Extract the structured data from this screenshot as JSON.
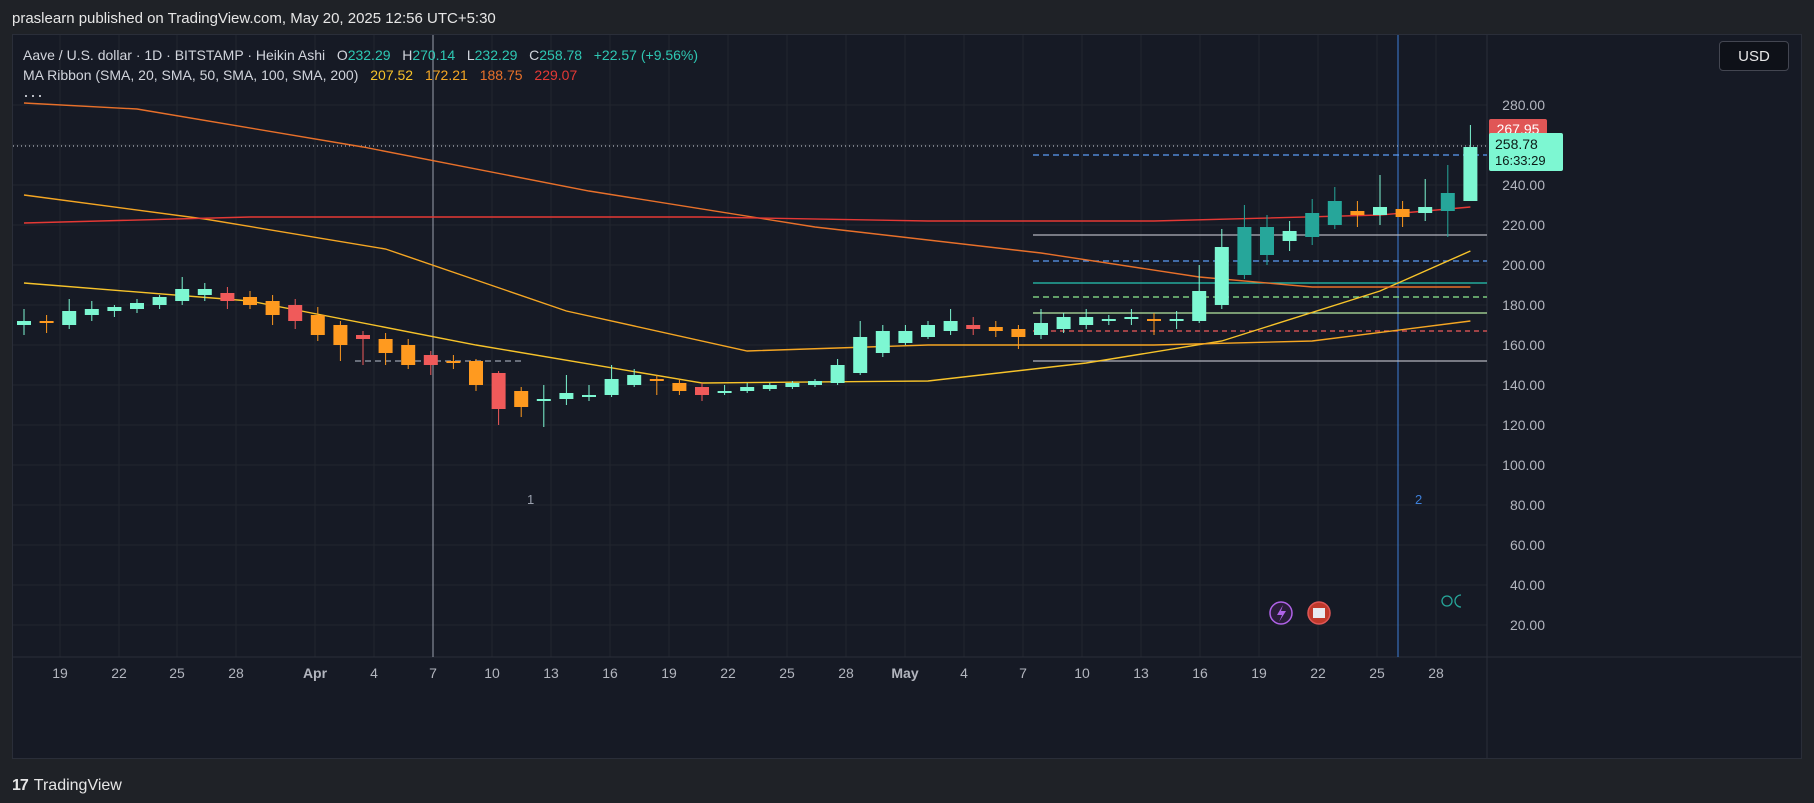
{
  "header": {
    "publish_text": "praslearn published on TradingView.com, May 20, 2025 12:56 UTC+5:30"
  },
  "legend": {
    "symbol": "Aave / U.S. dollar · 1D · BITSTAMP · Heikin Ashi",
    "o_label": "O",
    "o_value": "232.29",
    "h_label": "H",
    "h_value": "270.14",
    "l_label": "L",
    "l_value": "232.29",
    "c_label": "C",
    "c_value": "258.78",
    "change": "+22.57 (+9.56%)",
    "ma_label": "MA Ribbon (SMA, 20, SMA, 50, SMA, 100, SMA, 200)",
    "ma_values": [
      "207.52",
      "172.21",
      "188.75",
      "229.07"
    ],
    "more": "···"
  },
  "currency_button": "USD",
  "footer": {
    "logo": "17",
    "brand": "TradingView"
  },
  "colors": {
    "up": "#7df7d2",
    "up_dark": "#26a69a",
    "down": "#f05a5a",
    "down_orange": "#ff9a1f",
    "ma20": "#f7c32a",
    "ma50": "#f5a623",
    "ma100": "#e8702a",
    "ma200": "#e53935"
  },
  "chart_data": {
    "type": "candlestick",
    "y_ticks": [
      "280.00",
      "260.00",
      "240.00",
      "220.00",
      "200.00",
      "180.00",
      "160.00",
      "140.00",
      "120.00",
      "100.00",
      "80.00",
      "60.00",
      "40.00",
      "20.00"
    ],
    "x_ticks": [
      "19",
      "22",
      "25",
      "28",
      "Apr",
      "4",
      "7",
      "10",
      "13",
      "16",
      "19",
      "22",
      "25",
      "28",
      "May",
      "4",
      "7",
      "10",
      "13",
      "16",
      "19",
      "22",
      "25",
      "28"
    ],
    "ylim": [
      20,
      300
    ],
    "price_labels": {
      "high_marker": "267.95",
      "last_price": "258.78",
      "countdown": "16:33:29"
    },
    "annotations": [
      "1",
      "2"
    ],
    "candles": [
      {
        "o": 170,
        "h": 178,
        "l": 165,
        "c": 172,
        "d": "2025-03-17"
      },
      {
        "o": 172,
        "h": 175,
        "l": 166,
        "c": 171,
        "d": "2025-03-18"
      },
      {
        "o": 170,
        "h": 183,
        "l": 168,
        "c": 177,
        "d": "2025-03-19"
      },
      {
        "o": 175,
        "h": 182,
        "l": 172,
        "c": 178,
        "d": "2025-03-20"
      },
      {
        "o": 177,
        "h": 180,
        "l": 174,
        "c": 179,
        "d": "2025-03-21"
      },
      {
        "o": 178,
        "h": 183,
        "l": 176,
        "c": 181,
        "d": "2025-03-22"
      },
      {
        "o": 180,
        "h": 185,
        "l": 178,
        "c": 184,
        "d": "2025-03-23"
      },
      {
        "o": 182,
        "h": 194,
        "l": 180,
        "c": 188,
        "d": "2025-03-24"
      },
      {
        "o": 185,
        "h": 191,
        "l": 182,
        "c": 188,
        "d": "2025-03-25"
      },
      {
        "o": 186,
        "h": 189,
        "l": 178,
        "c": 182,
        "d": "2025-03-26"
      },
      {
        "o": 184,
        "h": 187,
        "l": 178,
        "c": 180,
        "d": "2025-03-27"
      },
      {
        "o": 182,
        "h": 185,
        "l": 170,
        "c": 175,
        "d": "2025-03-28"
      },
      {
        "o": 180,
        "h": 183,
        "l": 168,
        "c": 172,
        "d": "2025-03-29"
      },
      {
        "o": 175,
        "h": 179,
        "l": 162,
        "c": 165,
        "d": "2025-03-30"
      },
      {
        "o": 170,
        "h": 172,
        "l": 152,
        "c": 160,
        "d": "2025-03-31"
      },
      {
        "o": 165,
        "h": 167,
        "l": 150,
        "c": 163,
        "d": "2025-04-01"
      },
      {
        "o": 163,
        "h": 166,
        "l": 150,
        "c": 156,
        "d": "2025-04-02"
      },
      {
        "o": 160,
        "h": 163,
        "l": 148,
        "c": 150,
        "d": "2025-04-03"
      },
      {
        "o": 155,
        "h": 157,
        "l": 145,
        "c": 150,
        "d": "2025-04-04"
      },
      {
        "o": 152,
        "h": 155,
        "l": 148,
        "c": 151,
        "d": "2025-04-05"
      },
      {
        "o": 152,
        "h": 153,
        "l": 137,
        "c": 140,
        "d": "2025-04-06"
      },
      {
        "o": 146,
        "h": 147,
        "l": 120,
        "c": 128,
        "d": "2025-04-07"
      },
      {
        "o": 137,
        "h": 139,
        "l": 124,
        "c": 129,
        "d": "2025-04-08"
      },
      {
        "o": 133,
        "h": 140,
        "l": 119,
        "c": 133,
        "d": "2025-04-09"
      },
      {
        "o": 133,
        "h": 145,
        "l": 130,
        "c": 136,
        "d": "2025-04-10"
      },
      {
        "o": 134,
        "h": 140,
        "l": 132,
        "c": 135,
        "d": "2025-04-11"
      },
      {
        "o": 135,
        "h": 150,
        "l": 134,
        "c": 143,
        "d": "2025-04-12"
      },
      {
        "o": 140,
        "h": 148,
        "l": 139,
        "c": 145,
        "d": "2025-04-13"
      },
      {
        "o": 143,
        "h": 145,
        "l": 135,
        "c": 142,
        "d": "2025-04-14"
      },
      {
        "o": 141,
        "h": 143,
        "l": 135,
        "c": 137,
        "d": "2025-04-15"
      },
      {
        "o": 139,
        "h": 141,
        "l": 132,
        "c": 135,
        "d": "2025-04-16"
      },
      {
        "o": 136,
        "h": 140,
        "l": 135,
        "c": 137,
        "d": "2025-04-17"
      },
      {
        "o": 137,
        "h": 141,
        "l": 136,
        "c": 139,
        "d": "2025-04-18"
      },
      {
        "o": 138,
        "h": 141,
        "l": 137,
        "c": 140,
        "d": "2025-04-19"
      },
      {
        "o": 139,
        "h": 142,
        "l": 138,
        "c": 141,
        "d": "2025-04-20"
      },
      {
        "o": 140,
        "h": 143,
        "l": 139,
        "c": 142,
        "d": "2025-04-21"
      },
      {
        "o": 141,
        "h": 153,
        "l": 140,
        "c": 150,
        "d": "2025-04-22"
      },
      {
        "o": 146,
        "h": 172,
        "l": 145,
        "c": 164,
        "d": "2025-04-23"
      },
      {
        "o": 156,
        "h": 170,
        "l": 154,
        "c": 167,
        "d": "2025-04-24"
      },
      {
        "o": 161,
        "h": 170,
        "l": 160,
        "c": 167,
        "d": "2025-04-25"
      },
      {
        "o": 164,
        "h": 172,
        "l": 163,
        "c": 170,
        "d": "2025-04-26"
      },
      {
        "o": 167,
        "h": 178,
        "l": 165,
        "c": 172,
        "d": "2025-04-27"
      },
      {
        "o": 170,
        "h": 174,
        "l": 165,
        "c": 168,
        "d": "2025-04-28"
      },
      {
        "o": 169,
        "h": 172,
        "l": 164,
        "c": 167,
        "d": "2025-04-29"
      },
      {
        "o": 168,
        "h": 170,
        "l": 158,
        "c": 164,
        "d": "2025-04-30"
      },
      {
        "o": 165,
        "h": 178,
        "l": 163,
        "c": 171,
        "d": "2025-05-01"
      },
      {
        "o": 168,
        "h": 176,
        "l": 166,
        "c": 174,
        "d": "2025-05-02"
      },
      {
        "o": 170,
        "h": 178,
        "l": 168,
        "c": 174,
        "d": "2025-05-03"
      },
      {
        "o": 172,
        "h": 175,
        "l": 170,
        "c": 173,
        "d": "2025-05-04"
      },
      {
        "o": 173,
        "h": 178,
        "l": 170,
        "c": 174,
        "d": "2025-05-05"
      },
      {
        "o": 173,
        "h": 176,
        "l": 165,
        "c": 172,
        "d": "2025-05-06"
      },
      {
        "o": 172,
        "h": 177,
        "l": 168,
        "c": 173,
        "d": "2025-05-07"
      },
      {
        "o": 172,
        "h": 200,
        "l": 171,
        "c": 187,
        "d": "2025-05-08"
      },
      {
        "o": 180,
        "h": 218,
        "l": 178,
        "c": 209,
        "d": "2025-05-09"
      },
      {
        "o": 195,
        "h": 230,
        "l": 193,
        "c": 219,
        "d": "2025-05-10"
      },
      {
        "o": 205,
        "h": 225,
        "l": 200,
        "c": 219,
        "d": "2025-05-11"
      },
      {
        "o": 212,
        "h": 222,
        "l": 207,
        "c": 217,
        "d": "2025-05-12"
      },
      {
        "o": 214,
        "h": 233,
        "l": 210,
        "c": 226,
        "d": "2025-05-13"
      },
      {
        "o": 220,
        "h": 239,
        "l": 218,
        "c": 232,
        "d": "2025-05-14"
      },
      {
        "o": 227,
        "h": 232,
        "l": 219,
        "c": 225,
        "d": "2025-05-15"
      },
      {
        "o": 225,
        "h": 245,
        "l": 220,
        "c": 229,
        "d": "2025-05-16"
      },
      {
        "o": 228,
        "h": 232,
        "l": 219,
        "c": 224,
        "d": "2025-05-17"
      },
      {
        "o": 226,
        "h": 243,
        "l": 222,
        "c": 229,
        "d": "2025-05-18"
      },
      {
        "o": 227,
        "h": 250,
        "l": 214,
        "c": 236,
        "d": "2025-05-19"
      },
      {
        "o": 232,
        "h": 270,
        "l": 232,
        "c": 259,
        "d": "2025-05-20"
      }
    ],
    "series": [
      {
        "name": "SMA 20",
        "color": "#f7c32a",
        "values": [
          [
            0,
            191
          ],
          [
            10,
            182
          ],
          [
            20,
            160
          ],
          [
            30,
            141
          ],
          [
            40,
            142
          ],
          [
            47,
            151
          ],
          [
            53,
            162
          ],
          [
            60,
            187
          ],
          [
            64,
            207
          ]
        ]
      },
      {
        "name": "SMA 50",
        "color": "#f5a623",
        "values": [
          [
            0,
            235
          ],
          [
            8,
            223
          ],
          [
            16,
            208
          ],
          [
            24,
            177
          ],
          [
            32,
            157
          ],
          [
            40,
            160
          ],
          [
            50,
            160
          ],
          [
            57,
            162
          ],
          [
            64,
            172
          ]
        ]
      },
      {
        "name": "SMA 100",
        "color": "#e8702a",
        "values": [
          [
            0,
            281
          ],
          [
            5,
            278
          ],
          [
            15,
            259
          ],
          [
            25,
            237
          ],
          [
            35,
            219
          ],
          [
            45,
            206
          ],
          [
            52,
            194
          ],
          [
            57,
            189
          ],
          [
            64,
            189
          ]
        ]
      },
      {
        "name": "SMA 200",
        "color": "#e53935",
        "values": [
          [
            0,
            221
          ],
          [
            10,
            224
          ],
          [
            20,
            224
          ],
          [
            30,
            224
          ],
          [
            40,
            222
          ],
          [
            50,
            222
          ],
          [
            60,
            225
          ],
          [
            64,
            229
          ]
        ]
      }
    ],
    "levels": [
      {
        "y": 255,
        "color": "#5b9cf5",
        "dash": "6,4",
        "from_index": 45
      },
      {
        "y": 215,
        "color": "#b2b5be",
        "dash": "",
        "from_index": 45
      },
      {
        "y": 202,
        "color": "#5b9cf5",
        "dash": "6,4",
        "from_index": 45
      },
      {
        "y": 191,
        "color": "#26c6b4",
        "dash": "",
        "from_index": 45
      },
      {
        "y": 184,
        "color": "#90ee90",
        "dash": "6,4",
        "from_index": 45
      },
      {
        "y": 176,
        "color": "#b5e8a0",
        "dash": "",
        "from_index": 45
      },
      {
        "y": 167,
        "color": "#f05a5a",
        "dash": "5,4",
        "from_index": 45
      },
      {
        "y": 152,
        "color": "#b2b5be",
        "dash": "",
        "from_index": 45
      },
      {
        "y": 152,
        "color": "#9aa0ad",
        "dash": "6,4",
        "from_index": 15,
        "to_index": 22
      }
    ]
  }
}
